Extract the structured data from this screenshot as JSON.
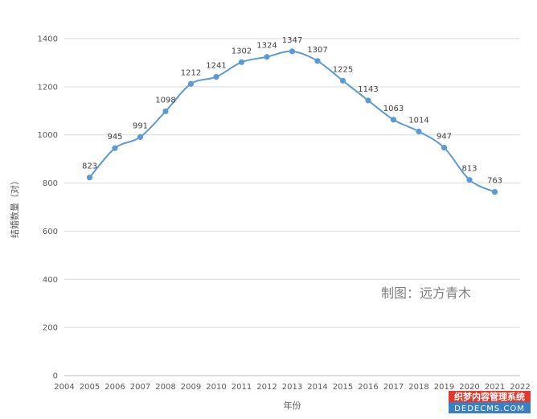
{
  "chart_data": {
    "type": "line",
    "title": "",
    "xlabel": "年份",
    "ylabel": "结婚数量（对）",
    "xlim": [
      2004,
      2022
    ],
    "ylim": [
      0,
      1400
    ],
    "x_ticks": [
      2004,
      2005,
      2006,
      2007,
      2008,
      2009,
      2010,
      2011,
      2012,
      2013,
      2014,
      2015,
      2016,
      2017,
      2018,
      2019,
      2020,
      2021,
      2022
    ],
    "y_ticks": [
      0,
      200,
      400,
      600,
      800,
      1000,
      1200,
      1400
    ],
    "grid": "horizontal",
    "smooth": true,
    "markers": true,
    "line_color": "#5b9bd5",
    "series": [
      {
        "x": [
          2005,
          2006,
          2007,
          2008,
          2009,
          2010,
          2011,
          2012,
          2013,
          2014,
          2015,
          2016,
          2017,
          2018,
          2019,
          2020,
          2021
        ],
        "values": [
          823,
          945,
          991,
          1098,
          1212,
          1241,
          1302,
          1324,
          1347,
          1307,
          1225,
          1143,
          1063,
          1014,
          947,
          813,
          763
        ]
      }
    ]
  },
  "annotation": "制图：远方青木",
  "watermark": {
    "line1": "织梦内容管理系统",
    "line2": "DEDECMS.COM"
  }
}
